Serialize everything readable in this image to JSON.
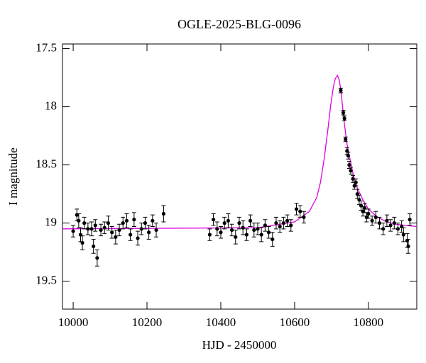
{
  "chart_data": {
    "type": "scatter",
    "title": "OGLE-2025-BLG-0096",
    "xlabel": "HJD - 2450000",
    "ylabel": "I magnitude",
    "xlim": [
      9971,
      10931
    ],
    "ylim": [
      19.74,
      17.46
    ],
    "xticks": [
      10000,
      10200,
      10400,
      10600,
      10800
    ],
    "yticks": [
      17.5,
      18,
      18.5,
      19,
      19.5
    ],
    "color": "#000000",
    "x": [
      10000,
      10010,
      10015,
      10020,
      10025,
      10030,
      10040,
      10050,
      10055,
      10060,
      10065,
      10075,
      10085,
      10095,
      10105,
      10115,
      10125,
      10135,
      10145,
      10155,
      10165,
      10175,
      10185,
      10195,
      10205,
      10215,
      10225,
      10245,
      10370,
      10380,
      10390,
      10400,
      10410,
      10420,
      10430,
      10440,
      10450,
      10460,
      10470,
      10480,
      10490,
      10500,
      10510,
      10520,
      10530,
      10540,
      10550,
      10560,
      10570,
      10580,
      10590,
      10605,
      10615,
      10625,
      10725,
      10732,
      10735,
      10738,
      10742,
      10745,
      10748,
      10752,
      10758,
      10762,
      10766,
      10770,
      10775,
      10780,
      10785,
      10790,
      10795,
      10800,
      10810,
      10820,
      10830,
      10840,
      10850,
      10860,
      10870,
      10880,
      10890,
      10895,
      10905,
      10908,
      10912
    ],
    "values": [
      19.07,
      18.93,
      18.98,
      19.1,
      19.17,
      19.0,
      19.05,
      19.05,
      19.2,
      19.02,
      19.3,
      19.06,
      19.04,
      19.0,
      19.08,
      19.12,
      19.06,
      19.0,
      18.98,
      19.1,
      18.97,
      19.13,
      19.05,
      19.0,
      19.08,
      18.98,
      19.06,
      18.92,
      19.1,
      18.97,
      19.05,
      19.08,
      19.0,
      18.98,
      19.06,
      19.12,
      19.0,
      19.04,
      19.1,
      18.98,
      19.06,
      19.05,
      19.1,
      19.02,
      19.08,
      19.14,
      19.0,
      19.03,
      19.0,
      18.98,
      19.02,
      18.88,
      18.9,
      18.95,
      17.86,
      18.05,
      18.1,
      18.28,
      18.38,
      18.42,
      18.5,
      18.55,
      18.62,
      18.68,
      18.65,
      18.75,
      18.8,
      18.85,
      18.9,
      18.87,
      18.95,
      18.92,
      18.98,
      18.95,
      19.0,
      19.05,
      18.98,
      19.02,
      19.0,
      19.05,
      19.03,
      19.1,
      19.15,
      19.2,
      18.97
    ],
    "errors": [
      0.05,
      0.05,
      0.06,
      0.06,
      0.06,
      0.05,
      0.05,
      0.06,
      0.06,
      0.05,
      0.07,
      0.05,
      0.05,
      0.06,
      0.05,
      0.06,
      0.05,
      0.05,
      0.06,
      0.05,
      0.06,
      0.06,
      0.05,
      0.05,
      0.06,
      0.05,
      0.06,
      0.07,
      0.05,
      0.05,
      0.06,
      0.05,
      0.05,
      0.06,
      0.05,
      0.06,
      0.05,
      0.06,
      0.05,
      0.05,
      0.06,
      0.05,
      0.06,
      0.05,
      0.05,
      0.06,
      0.05,
      0.05,
      0.05,
      0.05,
      0.05,
      0.05,
      0.05,
      0.05,
      0.02,
      0.02,
      0.02,
      0.02,
      0.03,
      0.03,
      0.03,
      0.03,
      0.03,
      0.03,
      0.03,
      0.04,
      0.04,
      0.04,
      0.04,
      0.04,
      0.04,
      0.04,
      0.04,
      0.05,
      0.05,
      0.05,
      0.05,
      0.05,
      0.05,
      0.05,
      0.05,
      0.06,
      0.06,
      0.06,
      0.05
    ],
    "model": {
      "color": "#e000e0",
      "x": [
        9971,
        10500,
        10600,
        10640,
        10660,
        10670,
        10680,
        10690,
        10698,
        10705,
        10710,
        10716,
        10721,
        10725,
        10730,
        10735,
        10742,
        10750,
        10760,
        10770,
        10785,
        10800,
        10825,
        10850,
        10875,
        10900,
        10931
      ],
      "values": [
        19.05,
        19.04,
        18.99,
        18.9,
        18.78,
        18.65,
        18.45,
        18.2,
        17.98,
        17.83,
        17.76,
        17.73,
        17.77,
        17.85,
        18.0,
        18.15,
        18.32,
        18.45,
        18.6,
        18.7,
        18.8,
        18.88,
        18.95,
        18.99,
        19.01,
        19.02,
        19.03
      ]
    }
  }
}
